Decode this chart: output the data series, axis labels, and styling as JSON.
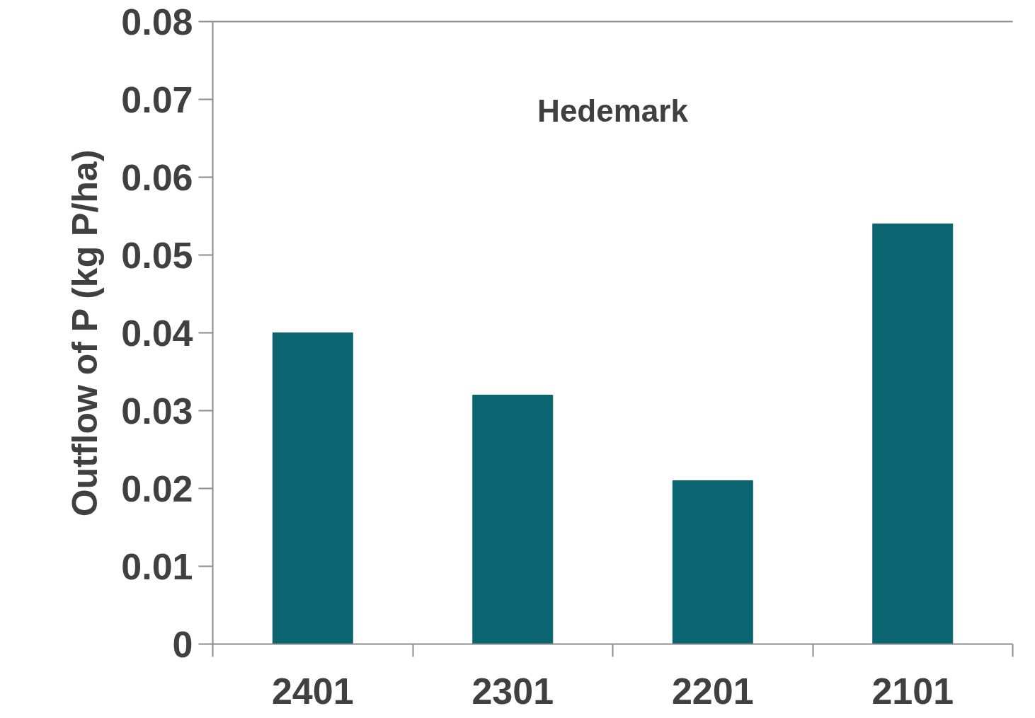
{
  "chart_data": {
    "type": "bar",
    "ylabel": "Outflow of P (kg P/ha)",
    "annotations": [
      "Hedemark"
    ],
    "categories": [
      "2401",
      "2301",
      "2201",
      "2101"
    ],
    "values": [
      0.04,
      0.032,
      0.021,
      0.054
    ],
    "color": "#0a6570",
    "ylim": [
      0,
      0.08
    ],
    "yticks": [
      0,
      0.01,
      0.02,
      0.03,
      0.04,
      0.05,
      0.06,
      0.07,
      0.08
    ],
    "grid": false
  }
}
